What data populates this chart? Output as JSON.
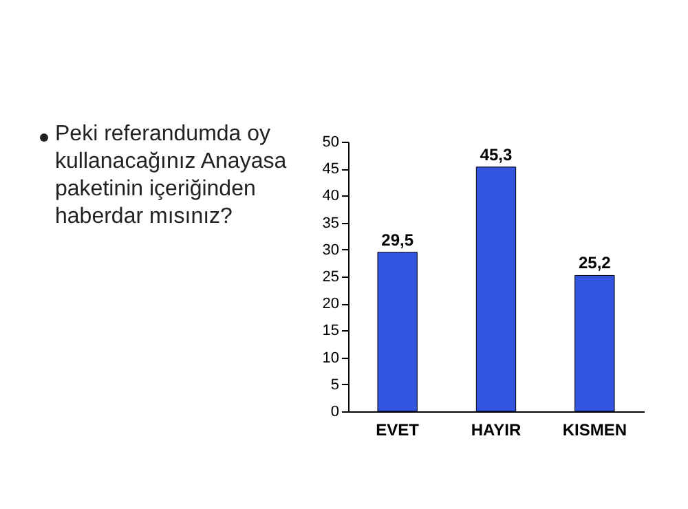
{
  "chart_data": {
    "type": "bar",
    "title": "Peki referandumda oy kullanacağınız Anayasa paketinin içeriğinden haberdar mısınız?",
    "categories": [
      "EVET",
      "HAYIR",
      "KISMEN"
    ],
    "values": [
      29.5,
      45.3,
      25.2
    ],
    "value_labels": [
      "29,5",
      "45,3",
      "25,2"
    ],
    "color": "#3355e0",
    "ylim": [
      0,
      50
    ],
    "yticks": [
      0,
      5,
      10,
      15,
      20,
      25,
      30,
      35,
      40,
      45,
      50
    ],
    "grid": false
  }
}
